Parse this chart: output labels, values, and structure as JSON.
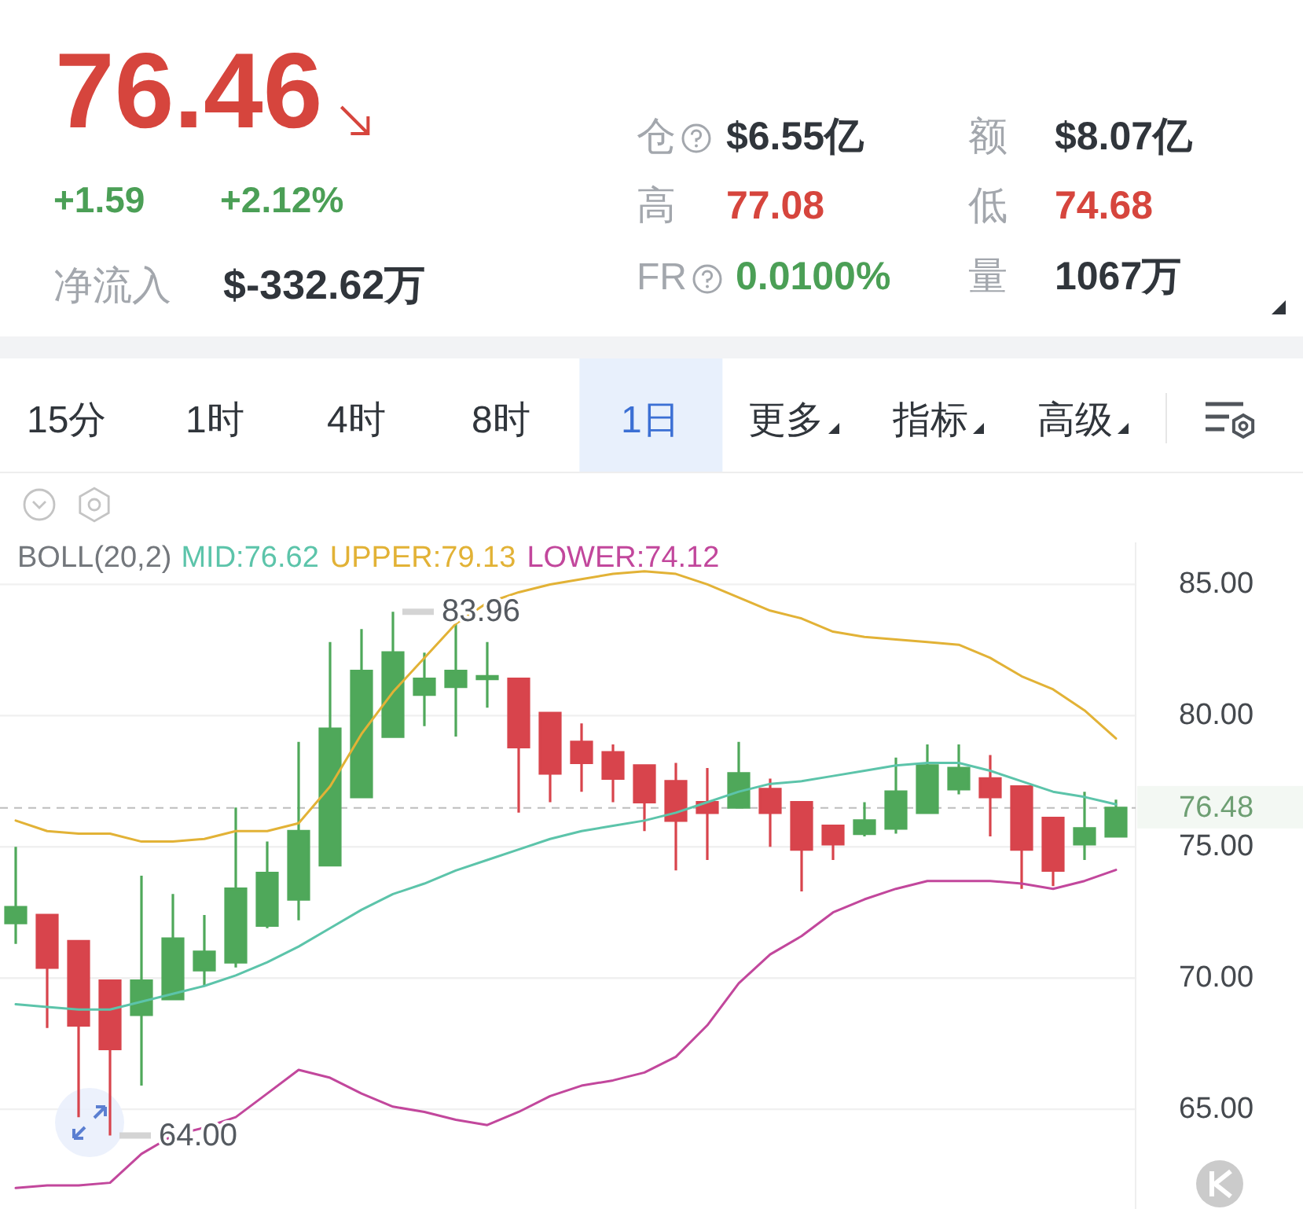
{
  "chart_data": [
    {
      "type": "other",
      "annotations": [
        "76.46",
        "+1.59",
        "+2.12%",
        "净流入",
        "$-332.62万",
        "仓",
        "$6.55亿",
        "额",
        "$8.07亿",
        "高",
        "77.08",
        "低",
        "74.68",
        "FR",
        "0.0100%",
        "量",
        "1067万"
      ]
    },
    {
      "type": "other",
      "annotations": [
        "15分",
        "1时",
        "4时",
        "8时",
        "1日",
        "更多",
        "指标",
        "高级"
      ]
    },
    {
      "type": "candlestick",
      "categories": [
        null,
        null,
        null,
        null,
        null,
        null,
        null,
        null,
        null,
        null,
        null,
        null,
        null,
        null,
        null,
        null,
        null,
        null,
        null,
        null,
        null,
        null,
        null,
        null,
        null,
        null,
        null,
        null,
        null,
        null,
        null,
        null,
        null,
        null,
        null,
        null
      ],
      "ohlc": [
        [
          72.1,
          75.0,
          71.3,
          72.7
        ],
        [
          72.4,
          72.4,
          68.1,
          70.4
        ],
        [
          71.4,
          71.4,
          64.7,
          68.2
        ],
        [
          69.9,
          69.9,
          64.0,
          67.3
        ],
        [
          68.6,
          73.9,
          65.9,
          69.9
        ],
        [
          69.2,
          73.2,
          69.2,
          71.5
        ],
        [
          70.3,
          72.4,
          69.7,
          71.0
        ],
        [
          70.6,
          76.5,
          70.4,
          73.4
        ],
        [
          72.0,
          75.2,
          71.9,
          74.0
        ],
        [
          73.0,
          79.0,
          72.2,
          75.6
        ],
        [
          74.3,
          82.8,
          74.3,
          79.5
        ],
        [
          76.9,
          83.3,
          76.9,
          81.7
        ],
        [
          79.2,
          83.96,
          79.2,
          82.4
        ],
        [
          80.8,
          82.4,
          79.6,
          81.4
        ],
        [
          81.1,
          83.6,
          79.2,
          81.7
        ],
        [
          81.4,
          82.8,
          80.3,
          81.5
        ],
        [
          81.4,
          81.4,
          76.3,
          78.8
        ],
        [
          80.1,
          80.1,
          76.7,
          77.8
        ],
        [
          79.0,
          79.7,
          77.1,
          78.2
        ],
        [
          78.6,
          78.9,
          76.7,
          77.6
        ],
        [
          78.1,
          78.1,
          75.6,
          76.7
        ],
        [
          77.5,
          78.2,
          74.1,
          76.0
        ],
        [
          76.7,
          78.0,
          74.5,
          76.3
        ],
        [
          76.5,
          79.0,
          76.5,
          77.8
        ],
        [
          77.2,
          77.6,
          75.0,
          76.3
        ],
        [
          76.7,
          76.7,
          73.3,
          74.9
        ],
        [
          75.8,
          75.8,
          74.5,
          75.1
        ],
        [
          75.5,
          76.7,
          75.4,
          76.0
        ],
        [
          75.7,
          78.4,
          75.5,
          77.1
        ],
        [
          76.3,
          78.9,
          76.3,
          78.1
        ],
        [
          77.2,
          78.9,
          77.0,
          78.0
        ],
        [
          77.6,
          78.5,
          75.4,
          76.9
        ],
        [
          77.3,
          77.3,
          73.4,
          74.9
        ],
        [
          76.1,
          76.1,
          73.5,
          74.1
        ],
        [
          75.1,
          77.1,
          74.5,
          75.7
        ],
        [
          75.4,
          76.8,
          75.4,
          76.48
        ]
      ],
      "colors": [
        "#4fa85a",
        "#d8444c",
        "#d8444c",
        "#d8444c",
        "#4fa85a",
        "#4fa85a",
        "#4fa85a",
        "#4fa85a",
        "#4fa85a",
        "#4fa85a",
        "#4fa85a",
        "#4fa85a",
        "#4fa85a",
        "#4fa85a",
        "#4fa85a",
        "#4fa85a",
        "#d8444c",
        "#d8444c",
        "#d8444c",
        "#d8444c",
        "#d8444c",
        "#d8444c",
        "#d8444c",
        "#4fa85a",
        "#d8444c",
        "#d8444c",
        "#d8444c",
        "#4fa85a",
        "#4fa85a",
        "#4fa85a",
        "#4fa85a",
        "#d8444c",
        "#d8444c",
        "#d8444c",
        "#4fa85a",
        "#4fa85a"
      ],
      "series": [
        {
          "type": "line",
          "name": "MID:76.62",
          "color": "#5cc4aa",
          "values": [
            69.0,
            68.9,
            68.8,
            68.8,
            69.1,
            69.4,
            69.7,
            70.1,
            70.6,
            71.2,
            71.9,
            72.6,
            73.2,
            73.6,
            74.1,
            74.5,
            74.9,
            75.3,
            75.6,
            75.8,
            76.0,
            76.3,
            76.7,
            77.1,
            77.4,
            77.5,
            77.7,
            77.9,
            78.1,
            78.2,
            78.2,
            77.9,
            77.5,
            77.1,
            76.9,
            76.62
          ]
        },
        {
          "type": "line",
          "name": "UPPER:79.13",
          "color": "#e2b236",
          "values": [
            76.0,
            75.6,
            75.5,
            75.5,
            75.2,
            75.2,
            75.3,
            75.6,
            75.6,
            75.9,
            77.3,
            79.3,
            80.9,
            82.2,
            83.5,
            84.3,
            84.7,
            85.0,
            85.2,
            85.4,
            85.5,
            85.4,
            85.0,
            84.5,
            84.0,
            83.7,
            83.2,
            83.0,
            82.9,
            82.8,
            82.7,
            82.2,
            81.5,
            81.0,
            80.2,
            79.13
          ]
        },
        {
          "type": "line",
          "name": "LOWER:74.12",
          "color": "#c2479c",
          "values": [
            62.0,
            62.1,
            62.1,
            62.2,
            63.3,
            64.0,
            64.3,
            64.7,
            65.6,
            66.5,
            66.2,
            65.6,
            65.1,
            64.9,
            64.6,
            64.4,
            64.9,
            65.5,
            65.9,
            66.1,
            66.4,
            67.0,
            68.2,
            69.8,
            70.9,
            71.6,
            72.5,
            73.0,
            73.4,
            73.7,
            73.7,
            73.7,
            73.6,
            73.4,
            73.7,
            74.12
          ]
        }
      ],
      "ylim": [
        61.2,
        86.6
      ],
      "yticks": [
        {
          "value": 65,
          "label": "65.00"
        },
        {
          "value": 70,
          "label": "70.00"
        },
        {
          "value": 75,
          "label": "75.00"
        },
        {
          "value": 80,
          "label": "80.00"
        },
        {
          "value": 85,
          "label": "85.00"
        }
      ],
      "grid": "y",
      "legend": "top left",
      "legend_title": "BOLL(20,2)",
      "ref_lines": [
        {
          "axis": "y",
          "value": 76.48,
          "color": "#bdbdbd",
          "line_style": "dashed"
        }
      ],
      "annotations": [
        {
          "text": "83.96",
          "y": 83.96
        },
        {
          "text": "64.00",
          "y": 64.0
        },
        "76.48"
      ]
    }
  ]
}
